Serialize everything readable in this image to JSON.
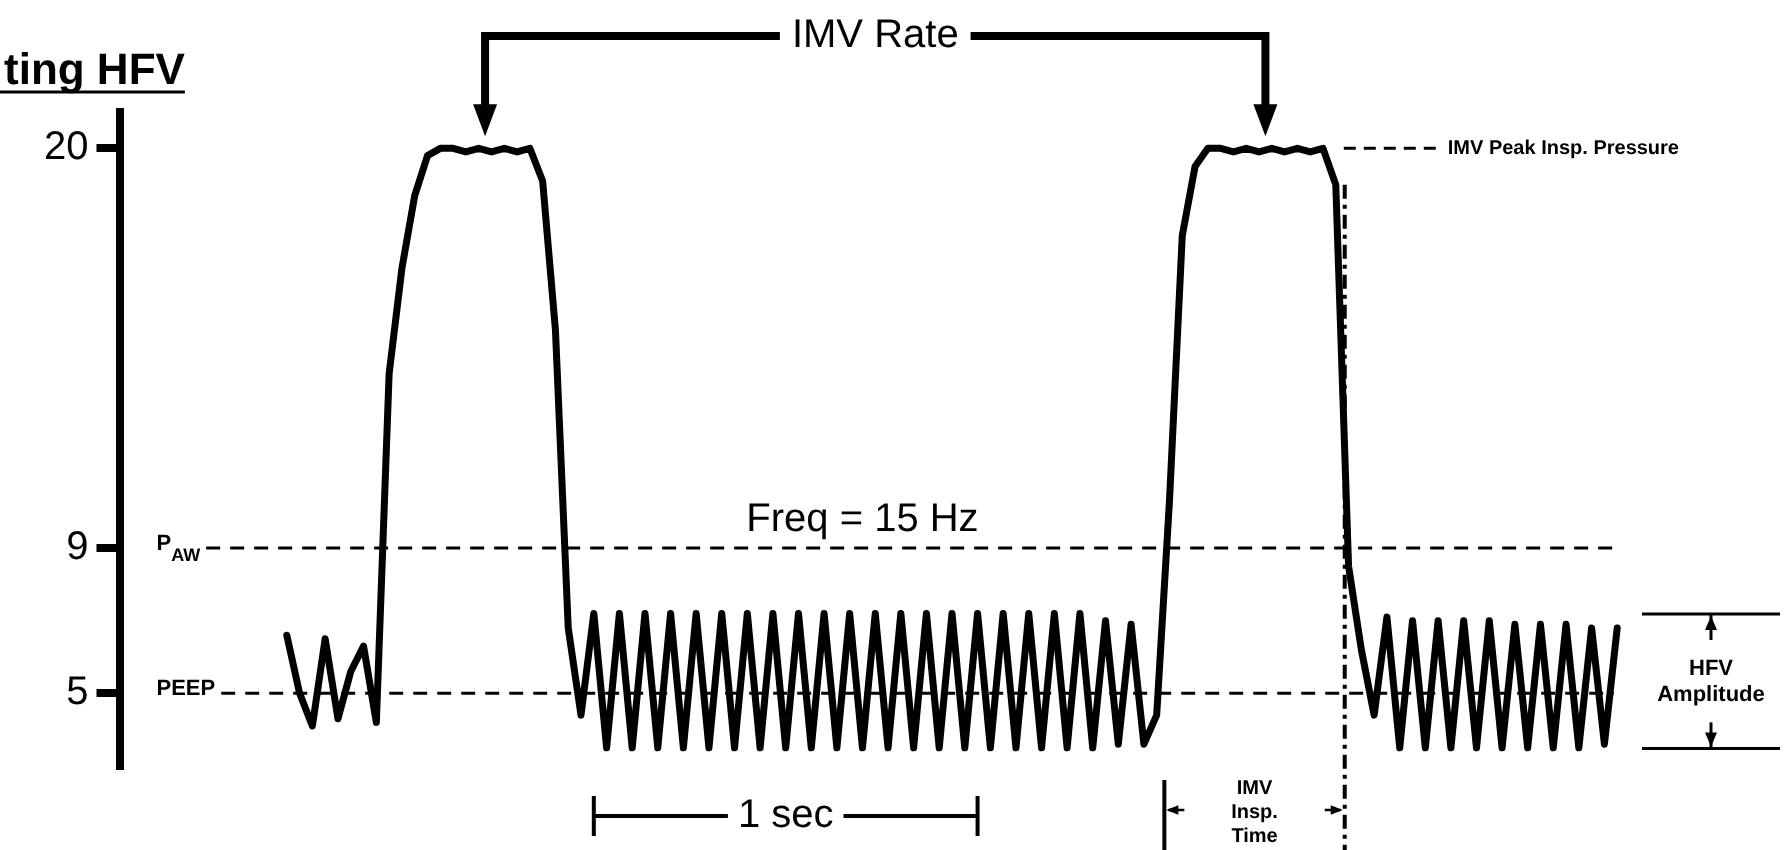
{
  "chart_data": {
    "type": "line",
    "title": "ting HFV",
    "categories": [
      null,
      null,
      null,
      null,
      null,
      null,
      null,
      null,
      null,
      null,
      null,
      null,
      null,
      null,
      null,
      null,
      null,
      null,
      null,
      null,
      null,
      null,
      null,
      null,
      null,
      null,
      null,
      null,
      null,
      null,
      null,
      null,
      null,
      null,
      null,
      null,
      null,
      null,
      null,
      null,
      null,
      null,
      null,
      null,
      null,
      null,
      null,
      null,
      null,
      null,
      null,
      null,
      null,
      null,
      null,
      null,
      null,
      null,
      null,
      null,
      null,
      null,
      null,
      null,
      null,
      null,
      null,
      null,
      null,
      null,
      null,
      null,
      null,
      null,
      null,
      null,
      null,
      null,
      null,
      null,
      null,
      null,
      null,
      null,
      null,
      null,
      null,
      null,
      null,
      null,
      null,
      null,
      null,
      null,
      null,
      null,
      null,
      null,
      null,
      null,
      null,
      null,
      null,
      null,
      null
    ],
    "values": [
      6.6,
      5.0,
      4.1,
      6.5,
      4.3,
      5.6,
      6.3,
      4.2,
      13.8,
      16.7,
      18.7,
      19.8,
      20,
      20,
      19.9,
      20,
      19.9,
      20,
      19.9,
      20,
      19.1,
      15,
      6.8,
      4.4,
      7.2,
      3.5,
      7.2,
      3.5,
      7.2,
      3.5,
      7.2,
      3.5,
      7.2,
      3.5,
      7.2,
      3.5,
      7.2,
      3.5,
      7.2,
      3.5,
      7.2,
      3.5,
      7.2,
      3.5,
      7.2,
      3.5,
      7.2,
      3.5,
      7.2,
      3.5,
      7.2,
      3.5,
      7.2,
      3.5,
      7.2,
      3.5,
      7.2,
      3.5,
      7.2,
      3.5,
      7.2,
      3.5,
      7.2,
      3.5,
      7.0,
      3.6,
      6.9,
      3.6,
      4.4,
      10.3,
      17.6,
      19.5,
      20,
      20,
      19.9,
      20,
      19.9,
      20,
      19.9,
      20,
      19.9,
      20,
      19.0,
      8.5,
      6.2,
      4.4,
      7.1,
      3.5,
      7.0,
      3.5,
      7.0,
      3.5,
      7.0,
      3.5,
      7.0,
      3.5,
      6.9,
      3.5,
      6.9,
      3.5,
      6.9,
      3.5,
      6.8,
      3.6,
      6.8
    ],
    "color": "#000000",
    "marker": "none",
    "line_style": "solid",
    "legend": false,
    "grid": false,
    "tick_labels": "y",
    "ylim": [
      3,
      21
    ],
    "yticks": [
      5,
      9,
      20
    ],
    "ref_lines": [
      {
        "axis": "y",
        "value": 9,
        "label": "P$_{AW}$",
        "line_style": "dashed"
      },
      {
        "axis": "y",
        "value": 5,
        "label": "PEEP",
        "line_style": "dashed"
      }
    ],
    "annotations": [
      "IMV Rate",
      "Freq = 15 Hz",
      "IMV Peak Insp. Pressure",
      "1 sec",
      "IMV Insp. Time",
      "HFV Amplitude"
    ]
  }
}
